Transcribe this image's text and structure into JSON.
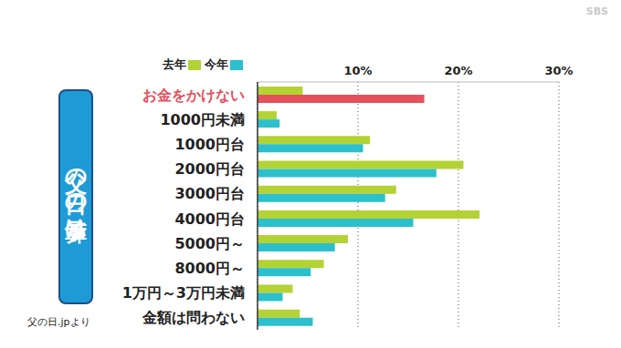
{
  "chart_data": {
    "type": "bar",
    "orientation": "horizontal",
    "title": "父の日の予算は?",
    "source": "父の日.jpより",
    "watermark": "SBS",
    "categories": [
      "お金をかけない",
      "1000円未満",
      "1000円台",
      "2000円台",
      "3000円台",
      "4000円台",
      "5000円～",
      "8000円～",
      "1万円～3万円未満",
      "金額は問わない"
    ],
    "series": [
      {
        "name": "去年",
        "color": "#b3d234",
        "values": [
          4.5,
          1.9,
          11.2,
          20.5,
          13.8,
          22.1,
          9.0,
          6.6,
          3.5,
          4.2
        ]
      },
      {
        "name": "今年",
        "color": "#2cbfcc",
        "colors": [
          "#e4505c",
          "#2cbfcc",
          "#2cbfcc",
          "#2cbfcc",
          "#2cbfcc",
          "#2cbfcc",
          "#2cbfcc",
          "#2cbfcc",
          "#2cbfcc",
          "#2cbfcc"
        ],
        "values": [
          16.6,
          2.2,
          10.5,
          17.8,
          12.7,
          15.5,
          7.7,
          5.3,
          2.5,
          5.5
        ]
      }
    ],
    "xlim": [
      0,
      30
    ],
    "xticks": [
      {
        "value": 10,
        "label": "10%"
      },
      {
        "value": 20,
        "label": "20%"
      },
      {
        "value": 30,
        "label": "30%"
      }
    ],
    "grid": true,
    "legend": "top"
  }
}
